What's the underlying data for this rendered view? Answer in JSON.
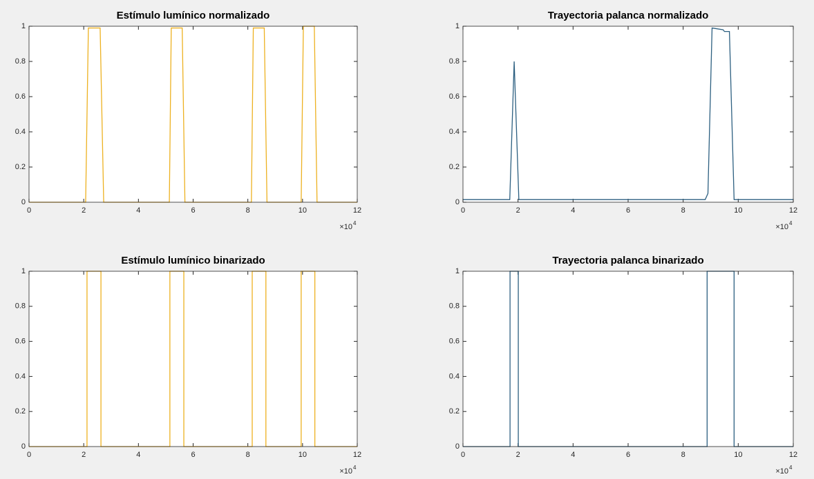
{
  "chart_data": [
    {
      "type": "line",
      "title": "Estímulo lumínico normalizado",
      "color": "#edb120",
      "x": [
        0,
        2.07,
        2.17,
        2.6,
        2.73,
        5.13,
        5.2,
        5.6,
        5.7,
        8.13,
        8.2,
        8.6,
        8.7,
        9.95,
        10.03,
        10.43,
        10.53,
        12
      ],
      "values": [
        0,
        0,
        0.99,
        0.99,
        0,
        0,
        0.99,
        0.99,
        0,
        0,
        0.99,
        0.99,
        0,
        0,
        1,
        1,
        0,
        0
      ],
      "xlim": [
        0,
        12
      ],
      "xticks": [
        0,
        2,
        4,
        6,
        8,
        10,
        12
      ],
      "ylim": [
        0,
        1
      ],
      "yticks": [
        0,
        0.2,
        0.4,
        0.6,
        0.8,
        1
      ],
      "x_multiplier": "×10",
      "x_multiplier_exponent": "4"
    },
    {
      "type": "line",
      "title": "Trayectoria palanca normalizado",
      "color": "#2c5f80",
      "x": [
        0,
        1.7,
        1.86,
        2.03,
        8.8,
        8.9,
        9.05,
        9.45,
        9.5,
        9.68,
        9.85,
        12
      ],
      "values": [
        0.015,
        0.015,
        0.8,
        0.015,
        0.015,
        0.05,
        0.99,
        0.98,
        0.97,
        0.97,
        0.015,
        0.015
      ],
      "xlim": [
        0,
        12
      ],
      "xticks": [
        0,
        2,
        4,
        6,
        8,
        10,
        12
      ],
      "ylim": [
        0,
        1
      ],
      "yticks": [
        0,
        0.2,
        0.4,
        0.6,
        0.8,
        1
      ],
      "x_multiplier": "×10",
      "x_multiplier_exponent": "4"
    },
    {
      "type": "line",
      "title": "Estímulo lumínico binarizado",
      "color": "#edb120",
      "x": [
        0,
        2.12,
        2.12,
        2.63,
        2.63,
        5.15,
        5.15,
        5.66,
        5.66,
        8.16,
        8.16,
        8.66,
        8.66,
        9.95,
        9.95,
        10.45,
        10.45,
        12
      ],
      "values": [
        0,
        0,
        1,
        1,
        0,
        0,
        1,
        1,
        0,
        0,
        1,
        1,
        0,
        0,
        1,
        1,
        0,
        0
      ],
      "xlim": [
        0,
        12
      ],
      "xticks": [
        0,
        2,
        4,
        6,
        8,
        10,
        12
      ],
      "ylim": [
        0,
        1
      ],
      "yticks": [
        0,
        0.2,
        0.4,
        0.6,
        0.8,
        1
      ],
      "x_multiplier": "×10",
      "x_multiplier_exponent": "4"
    },
    {
      "type": "line",
      "title": "Trayectoria palanca binarizado",
      "color": "#2c5f80",
      "x": [
        0,
        1.71,
        1.71,
        2.01,
        2.01,
        8.87,
        8.87,
        9.85,
        9.85,
        12
      ],
      "values": [
        0,
        0,
        1,
        1,
        0,
        0,
        1,
        1,
        0,
        0
      ],
      "xlim": [
        0,
        12
      ],
      "xticks": [
        0,
        2,
        4,
        6,
        8,
        10,
        12
      ],
      "ylim": [
        0,
        1
      ],
      "yticks": [
        0,
        0.2,
        0.4,
        0.6,
        0.8,
        1
      ],
      "x_multiplier": "×10",
      "x_multiplier_exponent": "4"
    }
  ]
}
